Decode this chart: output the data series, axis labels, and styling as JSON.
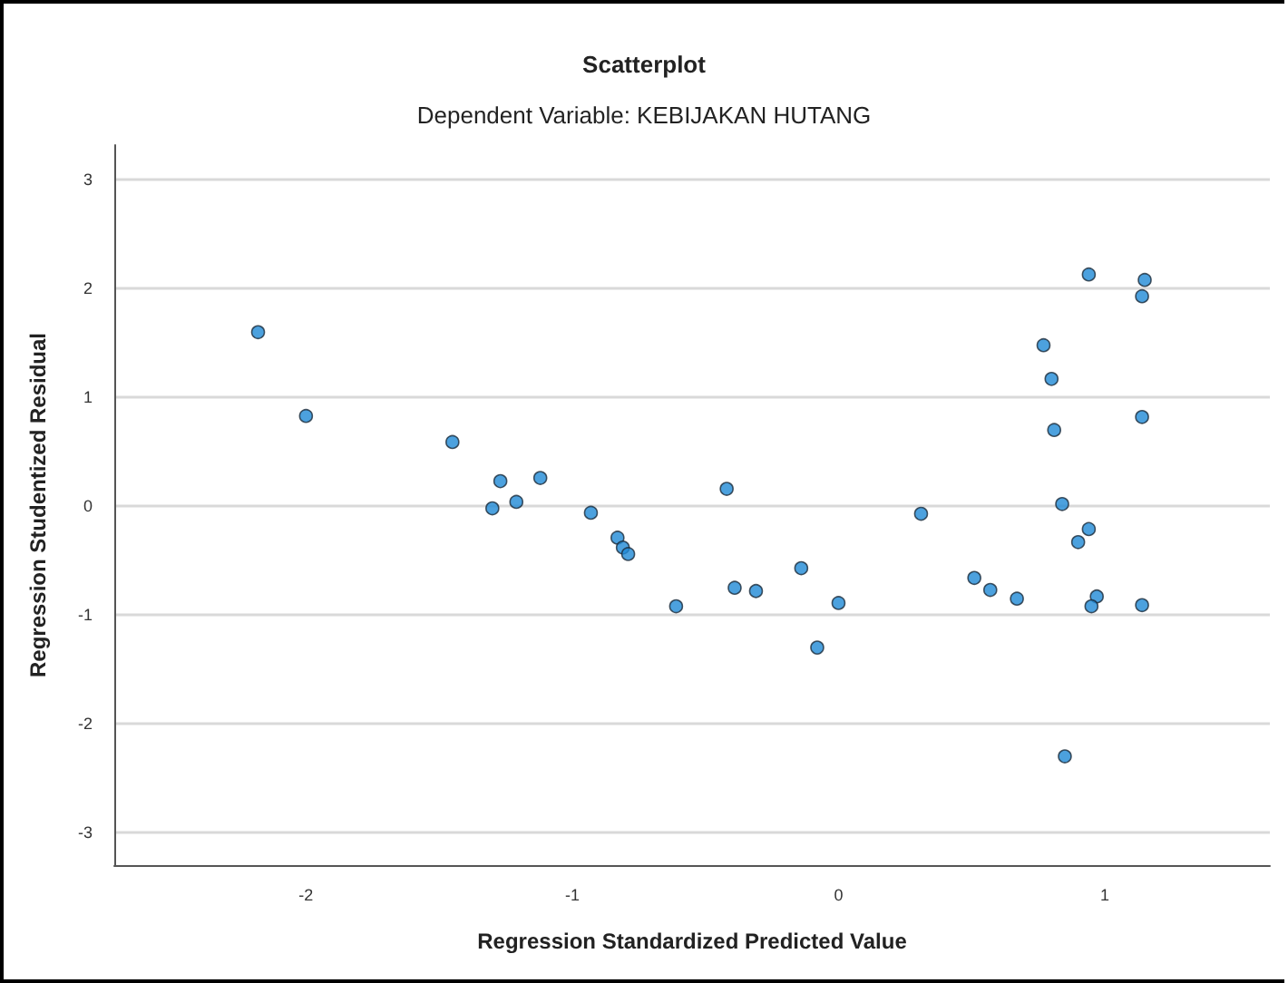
{
  "chart_data": {
    "type": "scatter",
    "title": "Scatterplot",
    "subtitle": "Dependent Variable: KEBIJAKAN HUTANG",
    "xlabel": "Regression Standardized Predicted Value",
    "ylabel": "Regression Studentized Residual",
    "x": [
      -2.18,
      -2.0,
      -1.45,
      -1.27,
      -1.3,
      -1.21,
      -1.12,
      -0.93,
      -0.83,
      -0.81,
      -0.79,
      -0.61,
      -0.42,
      -0.39,
      -0.31,
      -0.14,
      -0.08,
      0.0,
      0.31,
      0.51,
      0.57,
      0.67,
      0.77,
      0.8,
      0.81,
      0.84,
      0.85,
      0.9,
      0.94,
      0.94,
      0.97,
      0.95,
      1.15,
      1.14,
      1.14,
      1.14
    ],
    "series": [
      {
        "color": "#1f8ad6",
        "values": [
          1.6,
          0.83,
          0.59,
          0.23,
          -0.02,
          0.04,
          0.26,
          -0.06,
          -0.29,
          -0.38,
          -0.44,
          -0.92,
          0.16,
          -0.75,
          -0.78,
          -0.57,
          -1.3,
          -0.89,
          -0.07,
          -0.66,
          -0.77,
          -0.85,
          1.48,
          1.17,
          0.7,
          0.02,
          -2.3,
          -0.33,
          -0.21,
          2.13,
          -0.83,
          -0.92,
          2.08,
          1.93,
          0.82,
          -0.91
        ]
      }
    ],
    "xlim": [
      -2.72,
      1.62
    ],
    "xticks": [
      -2,
      -1,
      0,
      1
    ],
    "ylim": [
      -3.3,
      3.32
    ],
    "yticks": [
      -3,
      -2,
      -1,
      0,
      1,
      2,
      3
    ],
    "grid": "y",
    "marker": "circle"
  }
}
